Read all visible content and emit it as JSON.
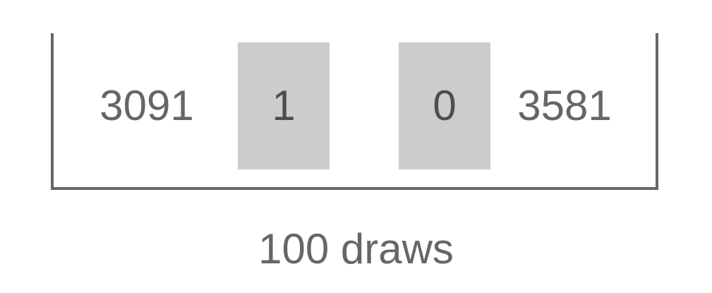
{
  "items": [
    {
      "value": "3091",
      "highlighted": false
    },
    {
      "value": "1",
      "highlighted": true
    },
    {
      "value": "0",
      "highlighted": true
    },
    {
      "value": "3581",
      "highlighted": false
    }
  ],
  "caption": "100 draws",
  "colors": {
    "stroke": "#666666",
    "highlight_fill": "#cccccc",
    "text": "#666666",
    "highlight_text": "#4d4d4d"
  }
}
